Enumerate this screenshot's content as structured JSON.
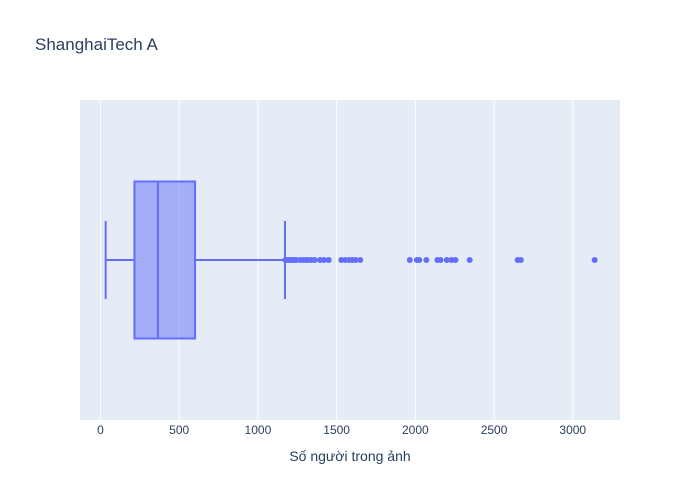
{
  "chart_data": {
    "type": "box",
    "title": "ShanghaiTech A",
    "xlabel": "Số người trong ảnh",
    "ylabel": "",
    "orientation": "horizontal",
    "xlim": [
      -130,
      3300
    ],
    "x_ticks": [
      0,
      500,
      1000,
      1500,
      2000,
      2500,
      3000
    ],
    "x_tick_labels": [
      "0",
      "500",
      "1000",
      "1500",
      "2000",
      "2500",
      "3000"
    ],
    "grid": true,
    "legend": "none",
    "series": [
      {
        "min": 33,
        "q1": 216,
        "median": 365,
        "q3": 601,
        "upper_fence": 1172,
        "outliers": [
          1175,
          1190,
          1200,
          1215,
          1230,
          1245,
          1270,
          1290,
          1305,
          1320,
          1340,
          1360,
          1395,
          1420,
          1450,
          1530,
          1555,
          1580,
          1600,
          1620,
          1650,
          1965,
          2010,
          2025,
          2070,
          2140,
          2160,
          2200,
          2230,
          2255,
          2345,
          2650,
          2670,
          3139
        ]
      }
    ],
    "colors": {
      "box_line": "#636efa",
      "box_fill": "rgba(99,110,250,0.5)",
      "plot_bg": "#e5ecf6",
      "grid": "#ffffff",
      "text": "#2a3f5f"
    }
  }
}
